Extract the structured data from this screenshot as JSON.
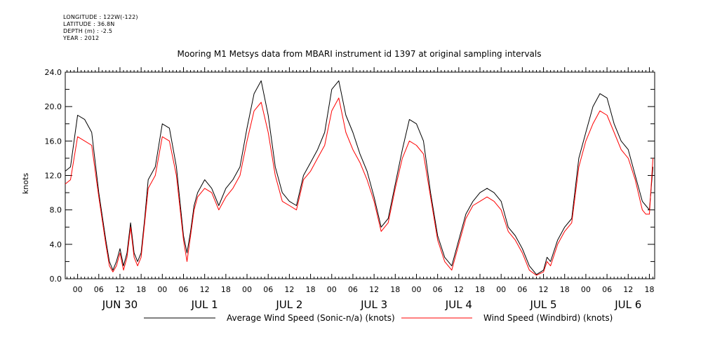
{
  "meta": {
    "longitude": "LONGITUDE : 122W(-122)",
    "latitude": "LATITUDE : 36.8N",
    "depth": "DEPTH (m) : -2.5",
    "year": "YEAR : 2012"
  },
  "chart_data": {
    "type": "line",
    "title": "Mooring M1 Metsys data from MBARI instrument id 1397 at original sampling intervals",
    "xlabel": "",
    "ylabel": "knots",
    "ylim": [
      0,
      24
    ],
    "ytick_labels": [
      "0.0",
      "4.0",
      "8.0",
      "12.0",
      "16.0",
      "20.0",
      "24.0"
    ],
    "hour_labels": [
      "00",
      "06",
      "12",
      "18",
      "00",
      "06",
      "12",
      "18",
      "00",
      "06",
      "12",
      "18",
      "00",
      "06",
      "12",
      "18",
      "00",
      "06",
      "12",
      "18",
      "00",
      "06",
      "12",
      "18",
      "00",
      "06",
      "12",
      "18"
    ],
    "day_labels": [
      "JUN 30",
      "JUL  1",
      "JUL  2",
      "JUL  3",
      "JUL  4",
      "JUL  5",
      "JUL  6"
    ],
    "x_units": "hours since JUN 30 00:00",
    "xlim": [
      -3.5,
      163.5
    ],
    "grid": false,
    "legend_position": "bottom",
    "series": [
      {
        "name": "Average Wind Speed (Sonic-n/a) (knots)",
        "color": "#000000",
        "x": [
          -3.5,
          -2,
          0,
          2,
          4,
          6,
          8,
          9,
          10,
          11,
          12,
          13,
          14,
          15,
          16,
          17,
          18,
          19,
          20,
          22,
          24,
          26,
          28,
          30,
          31,
          32,
          33,
          34,
          36,
          38,
          40,
          42,
          44,
          46,
          48,
          50,
          52,
          54,
          56,
          58,
          60,
          62,
          64,
          66,
          68,
          70,
          72,
          74,
          76,
          78,
          80,
          82,
          84,
          86,
          88,
          90,
          92,
          94,
          96,
          98,
          100,
          102,
          104,
          106,
          108,
          110,
          112,
          114,
          116,
          118,
          120,
          122,
          124,
          126,
          128,
          130,
          132,
          133,
          134,
          136,
          138,
          140,
          142,
          144,
          146,
          148,
          150,
          152,
          154,
          156,
          158,
          160,
          161,
          162,
          163
        ],
        "y": [
          12.5,
          13.0,
          19.0,
          18.5,
          17.0,
          10.0,
          4.5,
          2.0,
          1.0,
          2.0,
          3.5,
          1.5,
          3.0,
          6.5,
          3.0,
          2.0,
          3.0,
          7.0,
          11.5,
          13.0,
          18.0,
          17.5,
          13.0,
          5.0,
          3.0,
          5.5,
          8.5,
          10.0,
          11.5,
          10.5,
          8.5,
          10.5,
          11.5,
          13.0,
          17.5,
          21.5,
          23.0,
          19.0,
          13.0,
          10.0,
          9.0,
          8.5,
          12.0,
          13.5,
          15.0,
          17.0,
          22.0,
          23.0,
          19.0,
          17.0,
          14.5,
          12.5,
          9.5,
          6.0,
          7.0,
          11.0,
          15.0,
          18.5,
          18.0,
          16.0,
          10.0,
          5.0,
          2.5,
          1.5,
          4.5,
          7.5,
          9.0,
          10.0,
          10.5,
          10.0,
          9.0,
          6.0,
          5.0,
          3.5,
          1.5,
          0.5,
          1.0,
          2.5,
          2.0,
          4.5,
          6.0,
          7.0,
          14.0,
          17.0,
          20.0,
          21.5,
          21.0,
          18.0,
          16.0,
          15.0,
          12.0,
          9.0,
          8.5,
          8.0,
          13.0
        ]
      },
      {
        "name": "Wind Speed (Windbird) (knots)",
        "color": "#ff0000",
        "x": [
          -3.5,
          -2,
          0,
          2,
          4,
          6,
          8,
          9,
          10,
          11,
          12,
          13,
          14,
          15,
          16,
          17,
          18,
          19,
          20,
          22,
          24,
          26,
          28,
          30,
          31,
          32,
          33,
          34,
          36,
          38,
          40,
          42,
          44,
          46,
          48,
          50,
          52,
          54,
          56,
          58,
          60,
          62,
          64,
          66,
          68,
          70,
          72,
          74,
          76,
          78,
          80,
          82,
          84,
          86,
          88,
          90,
          92,
          94,
          96,
          98,
          100,
          102,
          104,
          106,
          108,
          110,
          112,
          114,
          116,
          118,
          120,
          122,
          124,
          126,
          128,
          130,
          132,
          133,
          134,
          136,
          138,
          140,
          142,
          144,
          146,
          148,
          150,
          152,
          154,
          156,
          158,
          160,
          161,
          162,
          163
        ],
        "y": [
          11.0,
          11.5,
          16.5,
          16.0,
          15.5,
          9.5,
          4.0,
          1.5,
          0.8,
          1.5,
          3.0,
          1.0,
          2.5,
          6.0,
          2.5,
          1.5,
          2.5,
          6.5,
          10.5,
          12.0,
          16.5,
          16.0,
          12.0,
          4.5,
          2.0,
          5.0,
          8.0,
          9.5,
          10.5,
          10.0,
          8.0,
          9.5,
          10.5,
          12.0,
          16.0,
          19.5,
          20.5,
          17.0,
          12.0,
          9.0,
          8.5,
          8.0,
          11.5,
          12.5,
          14.0,
          15.5,
          19.5,
          21.0,
          17.0,
          15.0,
          13.5,
          11.5,
          9.0,
          5.5,
          6.5,
          10.5,
          14.0,
          16.0,
          15.5,
          14.5,
          9.5,
          4.5,
          2.0,
          1.0,
          4.0,
          7.0,
          8.5,
          9.0,
          9.5,
          9.0,
          8.0,
          5.5,
          4.5,
          3.0,
          1.0,
          0.4,
          0.8,
          2.0,
          1.5,
          4.0,
          5.5,
          6.5,
          13.0,
          16.0,
          18.0,
          19.5,
          19.0,
          17.0,
          15.0,
          14.0,
          11.5,
          8.0,
          7.5,
          7.5,
          14.0
        ]
      }
    ]
  }
}
